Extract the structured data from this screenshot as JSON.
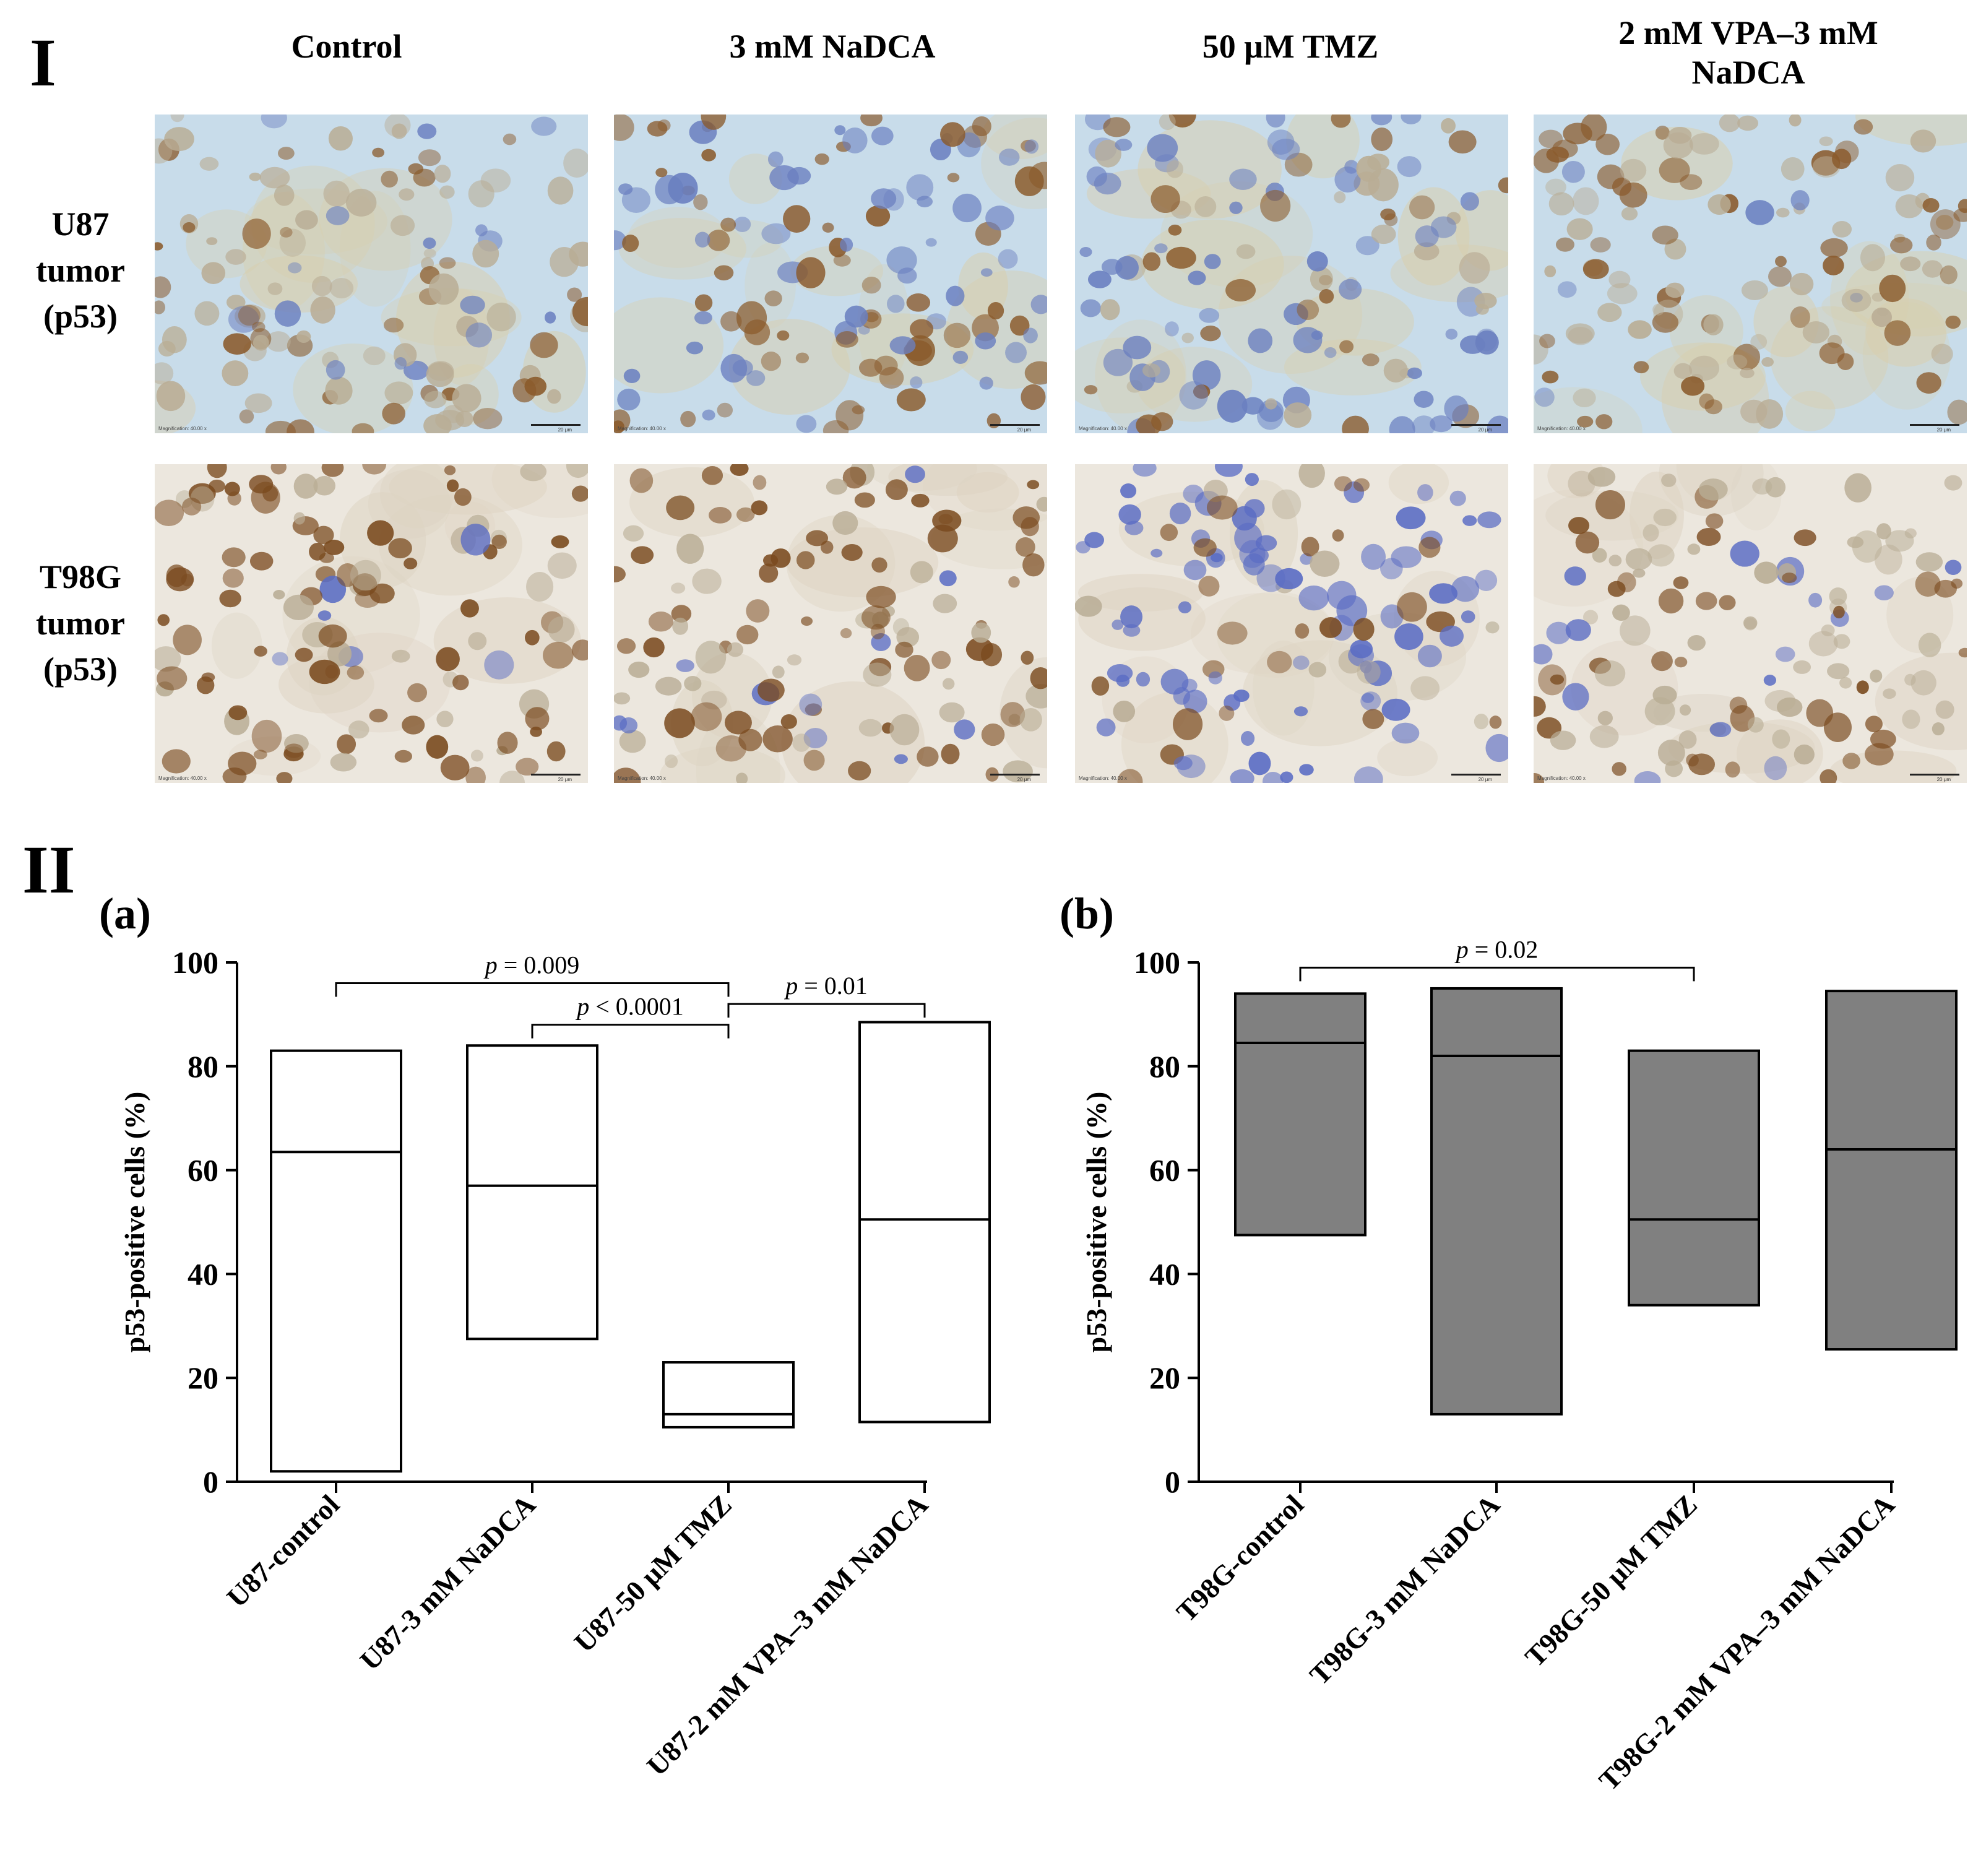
{
  "figure": {
    "panel_I_label": "I",
    "panel_II_label": "II"
  },
  "micrographs": {
    "columns": [
      "Control",
      "3 mM NaDCA",
      "50 μM TMZ",
      "2 mM VPA–3 mM NaDCA"
    ],
    "column_lines": [
      [
        "Control"
      ],
      [
        "3 mM NaDCA"
      ],
      [
        "50 μM TMZ"
      ],
      [
        "2 mM VPA–3 mM",
        "NaDCA"
      ]
    ],
    "rows": [
      {
        "lines": [
          "U87",
          "tumor",
          "(p53)"
        ],
        "tint": "#c8dcea",
        "brown": "#8a5a2b",
        "blue": "#6a7fc0"
      },
      {
        "lines": [
          "T98G",
          "tumor",
          "(p53)"
        ],
        "tint": "#ece7de",
        "brown": "#7a4a1e",
        "blue": "#5a6cc4"
      }
    ],
    "scale_bar_label": "20 μm",
    "magnification_label": "Magnification: 40.00 x"
  },
  "chart_data": [
    {
      "id": "a",
      "panel_label": "(a)",
      "type": "floating-bar",
      "title": "",
      "ylabel": "p53-positive cells (%)",
      "xlabel": "",
      "ylim": [
        0,
        100
      ],
      "yticks": [
        0,
        20,
        40,
        60,
        80,
        100
      ],
      "fill": "#ffffff",
      "categories": [
        "U87-control",
        "U87-3 mM NaDCA",
        "U87-50 μM TMZ",
        "U87-2 mM VPA–3 mM NaDCA"
      ],
      "bars": [
        {
          "min": 2,
          "median": 63.5,
          "max": 83
        },
        {
          "min": 27.5,
          "median": 57,
          "max": 84
        },
        {
          "min": 10.5,
          "median": 13,
          "max": 23
        },
        {
          "min": 11.5,
          "median": 50.5,
          "max": 88.5
        }
      ],
      "significance": [
        {
          "from": 0,
          "to": 2,
          "y": 96,
          "p_prefix": "p",
          "p_rest": " = 0.009"
        },
        {
          "from": 1,
          "to": 2,
          "y": 88,
          "p_prefix": "p",
          "p_rest": " < 0.0001"
        },
        {
          "from": 2,
          "to": 3,
          "y": 92,
          "p_prefix": "p",
          "p_rest": " = 0.01"
        }
      ],
      "grid": false,
      "legend": "none"
    },
    {
      "id": "b",
      "panel_label": "(b)",
      "type": "floating-bar",
      "title": "",
      "ylabel": "p53-positive cells (%)",
      "xlabel": "",
      "ylim": [
        0,
        100
      ],
      "yticks": [
        0,
        20,
        40,
        60,
        80,
        100
      ],
      "fill": "#808080",
      "categories": [
        "T98G-control",
        "T98G-3 mM NaDCA",
        "T98G-50 μM TMZ",
        "T98G-2 mM VPA–3 mM NaDCA"
      ],
      "bars": [
        {
          "min": 47.5,
          "median": 84.5,
          "max": 94
        },
        {
          "min": 13,
          "median": 82,
          "max": 95
        },
        {
          "min": 34,
          "median": 50.5,
          "max": 83
        },
        {
          "min": 25.5,
          "median": 64,
          "max": 94.5
        }
      ],
      "significance": [
        {
          "from": 0,
          "to": 2,
          "y": 99,
          "p_prefix": "p",
          "p_rest": " = 0.02"
        }
      ],
      "grid": false,
      "legend": "none"
    }
  ]
}
